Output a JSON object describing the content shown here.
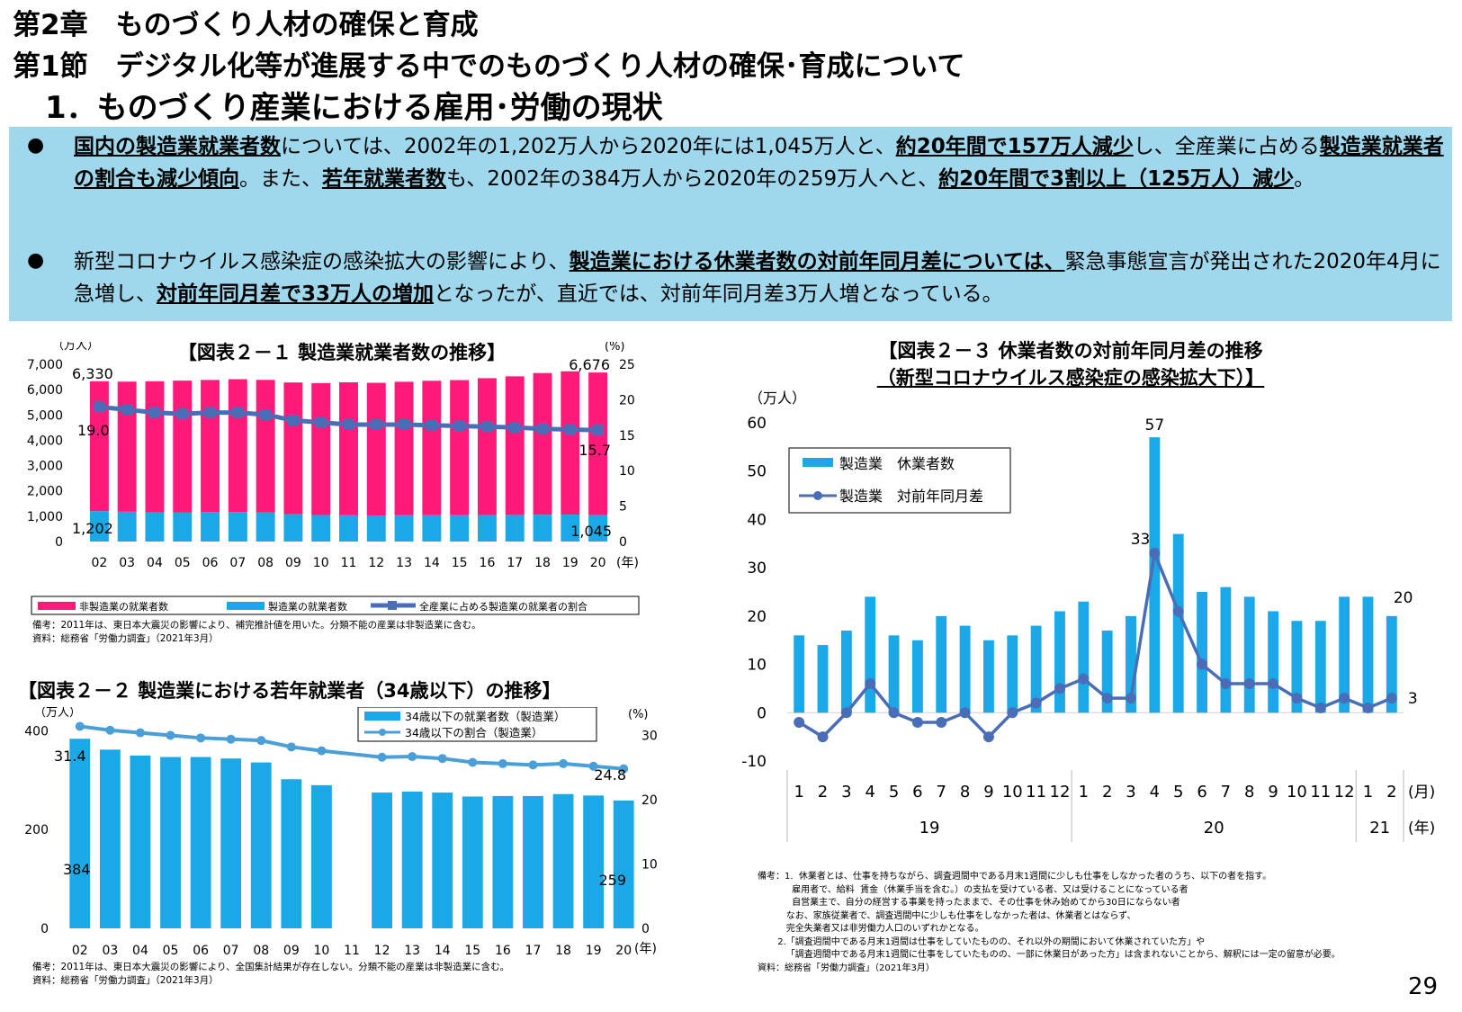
{
  "header": {
    "chapter": "第2章　ものづくり人材の確保と育成",
    "section": "第1節　デジタル化等が進展する中でのものづくり人材の確保･育成について",
    "subsection": "1．ものづくり産業における雇用･労働の現状"
  },
  "summary": {
    "p1": [
      {
        "t": "国内の製造業就業者数",
        "b": true
      },
      {
        "t": "については、2002年の1,202万人から2020年には1,045万人と、",
        "b": false
      },
      {
        "t": "約20年間で157万人減少",
        "b": true
      },
      {
        "t": "し、全産業に占める",
        "b": false
      },
      {
        "t": "製造業就業者の割合も減少傾向",
        "b": true
      },
      {
        "t": "。また、",
        "b": false
      },
      {
        "t": "若年就業者数",
        "b": true
      },
      {
        "t": "も、2002年の384万人から2020年の259万人へと、",
        "b": false
      },
      {
        "t": "約20年間で3割以上（125万人）減少",
        "b": true
      },
      {
        "t": "。",
        "b": false
      }
    ],
    "p2": [
      {
        "t": "新型コロナウイルス感染症の感染拡大の影響により、",
        "b": false
      },
      {
        "t": "製造業における休業者数の対前年同月差については、",
        "b": true
      },
      {
        "t": "緊急事態宣言が発出された2020年4月に急増し、",
        "b": false
      },
      {
        "t": "対前年同月差で33万人の増加",
        "b": true
      },
      {
        "t": "となったが、直近では、対前年同月差3万人増となっている。",
        "b": false
      }
    ]
  },
  "chart1_text": {
    "title": "【図表２－１ 製造業就業者数の推移】",
    "y_unit_left": "（万人）",
    "y_unit_right": "(%)",
    "x_unit": "(年)",
    "legend": [
      "非製造業の就業者数",
      "製造業の就業者数",
      "全産業に占める製造業の就業者の割合"
    ],
    "notes": "備考：2011年は、東日本大震災の影響により、補完推計値を用いた。分類不能の産業は非製造業に含む。\n資料：総務省「労働力調査」（2021年3月）"
  },
  "chart2_text": {
    "title": "【図表２－２ 製造業における若年就業者（34歳以下）の推移】",
    "y_unit_left": "（万人）",
    "y_unit_right": "(%)",
    "x_unit": "(年)",
    "legend": [
      "34歳以下の就業者数（製造業）",
      "34歳以下の割合（製造業）"
    ],
    "notes": "備考：2011年は、東日本大震災の影響により、全国集計結果が存在しない。分類不能の産業は非製造業に含む。\n資料：総務省「労働力調査」（2021年3月）"
  },
  "chart3_text": {
    "title_line1": "【図表２－３ 休業者数の対前年同月差の推移",
    "title_line2": "（新型コロナウイルス感染症の感染拡大下）】",
    "y_unit": "（万人）",
    "month_unit": "(月)",
    "year_unit": "(年)",
    "legend": [
      "製造業　休業者数",
      "製造業　対前年同月差"
    ],
    "notes": "備考：1.  休業者とは、仕事を持ちながら、調査週間中である月末1週間に少しも仕事をしなかった者のうち、以下の者を指す。\n            雇用者で、給料  賃金（休業手当を含む。）の支払を受けている者、又は受けることになっている者\n            自営業主で、自分の経営する事業を持ったままで、その仕事を休み始めてから30日にならない者\n          なお、家族従業者で、調査週間中に少しも仕事をしなかった者は、休業者とはならず、\n          完全失業者又は非労働力人口のいずれかとなる。\n       2.「調査週間中である月末1週間は仕事をしていたものの、それ以外の期間において休業されていた方」や\n          「調査週間中である月末1週間に仕事をしていたものの、一部に休業日があった方」は含まれないことから、解釈には一定の留意が必要。\n資料：総務省「労働力調査」（2021年3月）"
  },
  "page_number": "29",
  "chart_data": [
    {
      "type": "bar",
      "stacked": true,
      "categories": [
        "02",
        "03",
        "04",
        "05",
        "06",
        "07",
        "08",
        "09",
        "10",
        "11",
        "12",
        "13",
        "14",
        "15",
        "16",
        "17",
        "18",
        "19",
        "20"
      ],
      "series": [
        {
          "name": "製造業の就業者数",
          "values": [
            1202,
            1178,
            1150,
            1142,
            1161,
            1165,
            1144,
            1073,
            1049,
            1037,
            1032,
            1039,
            1040,
            1039,
            1045,
            1052,
            1060,
            1063,
            1045
          ],
          "color": "#1aa9e6"
        },
        {
          "name": "非製造業の就業者数",
          "values": [
            5128,
            5138,
            5179,
            5214,
            5221,
            5247,
            5241,
            5210,
            5208,
            5252,
            5238,
            5272,
            5311,
            5337,
            5407,
            5474,
            5596,
            5661,
            5631
          ],
          "color": "#ff1a7a"
        },
        {
          "name": "全産業に占める製造業の就業者の割合",
          "type": "line",
          "axis": "right",
          "values": [
            19.0,
            18.6,
            18.2,
            18.0,
            18.2,
            18.2,
            17.9,
            17.1,
            16.8,
            16.5,
            16.5,
            16.5,
            16.4,
            16.3,
            16.2,
            16.1,
            15.9,
            15.8,
            15.7
          ],
          "color": "#4a6db8"
        }
      ],
      "top_labels": {
        "first": "6,330",
        "last": "6,676"
      },
      "bottom_labels": {
        "first": "1,202",
        "last": "1,045"
      },
      "rate_labels": {
        "first": "19.0",
        "last": "15.7"
      },
      "ylim": [
        0,
        7000
      ],
      "yticks": [
        "0",
        "1,000",
        "2,000",
        "3,000",
        "4,000",
        "5,000",
        "6,000",
        "7,000"
      ],
      "y2lim": [
        0,
        25
      ],
      "y2ticks": [
        "0",
        "5",
        "10",
        "15",
        "20",
        "25"
      ]
    },
    {
      "type": "bar",
      "categories": [
        "02",
        "03",
        "04",
        "05",
        "06",
        "07",
        "08",
        "09",
        "10",
        "11",
        "12",
        "13",
        "14",
        "15",
        "16",
        "17",
        "18",
        "19",
        "20"
      ],
      "series": [
        {
          "name": "34歳以下の就業者数（製造業）",
          "values": [
            384,
            362,
            350,
            347,
            347,
            344,
            336,
            302,
            290,
            null,
            275,
            277,
            275,
            267,
            268,
            268,
            272,
            269,
            259
          ],
          "color": "#1aa9e6"
        },
        {
          "name": "34歳以下の割合（製造業）",
          "type": "line",
          "axis": "right",
          "values": [
            31.4,
            30.8,
            30.4,
            30.0,
            29.6,
            29.4,
            29.2,
            28.2,
            27.6,
            null,
            26.6,
            26.7,
            26.4,
            25.8,
            25.6,
            25.4,
            25.6,
            25.2,
            24.8
          ],
          "color": "#4a9fd8"
        }
      ],
      "bar_labels": {
        "first": "384",
        "last": "259"
      },
      "rate_labels": {
        "first": "31.4",
        "last": "24.8"
      },
      "ylim": [
        0,
        430
      ],
      "yticks": [
        "0",
        "200",
        "400"
      ],
      "y2lim": [
        0,
        33
      ],
      "y2ticks": [
        "0",
        "10",
        "20",
        "30"
      ]
    },
    {
      "type": "bar",
      "x_months": [
        "1",
        "2",
        "3",
        "4",
        "5",
        "6",
        "7",
        "8",
        "9",
        "10",
        "11",
        "12",
        "1",
        "2",
        "3",
        "4",
        "5",
        "6",
        "7",
        "8",
        "9",
        "10",
        "11",
        "12",
        "1",
        "2"
      ],
      "x_years": [
        "19",
        "20",
        "21"
      ],
      "series": [
        {
          "name": "製造業　休業者数",
          "values": [
            16,
            14,
            17,
            24,
            16,
            15,
            20,
            18,
            15,
            16,
            18,
            21,
            23,
            17,
            20,
            57,
            37,
            25,
            26,
            24,
            21,
            19,
            19,
            24,
            24,
            20
          ],
          "color": "#1aa9e6"
        },
        {
          "name": "製造業　対前年同月差",
          "type": "line",
          "values": [
            -2,
            -5,
            0,
            6,
            0,
            -2,
            -2,
            0,
            -5,
            0,
            2,
            5,
            7,
            3,
            3,
            33,
            21,
            10,
            6,
            6,
            6,
            3,
            1,
            3,
            1,
            3
          ],
          "color": "#4a6db8"
        }
      ],
      "point_labels": {
        "peak_bar": "57",
        "peak_diff": "33",
        "last_bar": "20",
        "last_diff": "3"
      },
      "ylim": [
        -10,
        60
      ],
      "yticks": [
        "-10",
        "0",
        "10",
        "20",
        "30",
        "40",
        "50",
        "60"
      ]
    }
  ]
}
